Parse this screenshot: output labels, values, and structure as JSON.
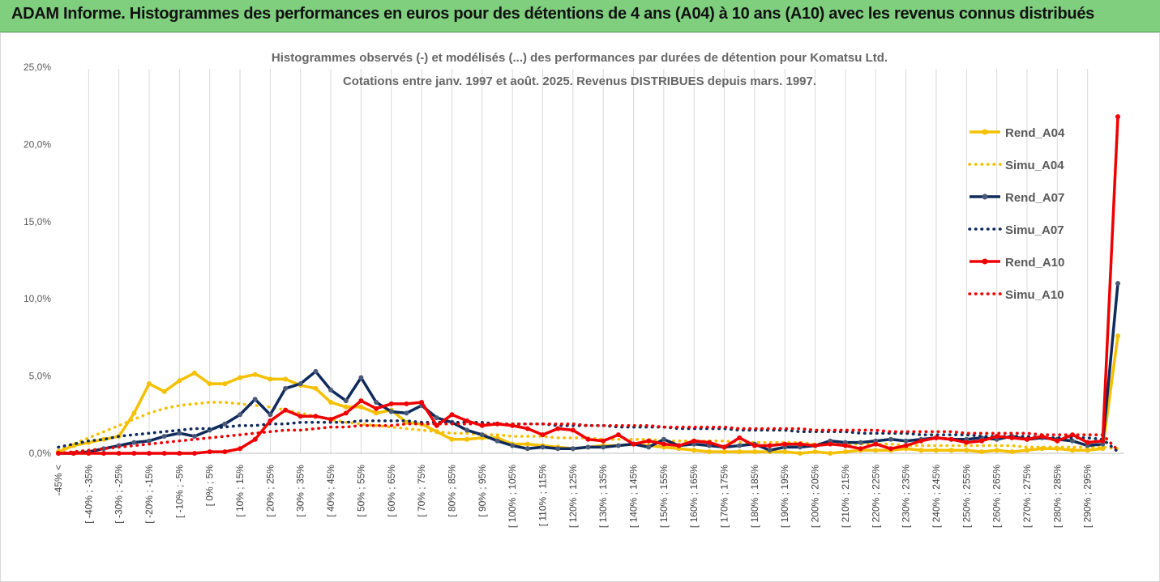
{
  "banner": {
    "title": "ADAM Informe. Histogrammes des performances en euros pour des détentions de 4 ans (A04) à 10 ans (A10) avec les revenus connus distribués"
  },
  "colors": {
    "banner": "#7fcf7f",
    "A04": "#f5c000",
    "A07": "#0f2a5c",
    "A10": "#f00000"
  },
  "chart_data": {
    "type": "line",
    "title": "Histogrammes observés (-) et modélisés (...) des performances par durées de détention pour Komatsu Ltd.",
    "subtitle": "Cotations entre janv. 1997 et août. 2025. Revenus DISTRIBUES depuis mars. 1997.",
    "xlabel": "",
    "ylabel": "",
    "ylim": [
      0,
      25
    ],
    "yticks": [
      "0,0%",
      "5,0%",
      "10,0%",
      "15,0%",
      "20,0%",
      "25,0%"
    ],
    "grid": "vertical",
    "legend": "right",
    "xtick_labels": [
      "-45% <",
      "[ -40% ; -35%",
      "[ -30% ; -25%",
      "[ -20% ; -15%",
      "[ -10% ; -5%",
      "[ 0% ; 5%",
      "[ 10% ; 15%",
      "[ 20% ; 25%",
      "[ 30% ; 35%",
      "[ 40% ; 45%",
      "[ 50% ; 55%",
      "[ 60% ; 65%",
      "[ 70% ; 75%",
      "[ 80% ; 85%",
      "[ 90% ; 95%",
      "[ 100% ; 105%",
      "[ 110% ; 115%",
      "[ 120% ; 125%",
      "[ 130% ; 135%",
      "[ 140% ; 145%",
      "[ 150% ; 155%",
      "[ 160% ; 165%",
      "[ 170% ; 175%",
      "[ 180% ; 185%",
      "[ 190% ; 195%",
      "[ 200% ; 205%",
      "[ 210% ; 215%",
      "[ 220% ; 225%",
      "[ 230% ; 235%",
      "[ 240% ; 245%",
      "[ 250% ; 255%",
      "[ 260% ; 265%",
      "[ 270% ; 275%",
      "[ 280% ; 285%",
      "[ 290% ; 295%"
    ],
    "series": [
      {
        "name": "Rend_A04",
        "style": "solid",
        "color": "#f5c000",
        "values": [
          0.1,
          0.5,
          0.7,
          0.9,
          1.1,
          2.6,
          4.5,
          4.0,
          4.7,
          5.2,
          4.5,
          4.5,
          4.9,
          5.1,
          4.8,
          4.8,
          4.4,
          4.2,
          3.3,
          3.0,
          3.0,
          2.6,
          2.8,
          2.0,
          1.9,
          1.4,
          0.9,
          0.9,
          1.0,
          1.0,
          0.6,
          0.6,
          0.5,
          0.4,
          0.3,
          0.4,
          0.5,
          0.5,
          0.6,
          0.5,
          0.4,
          0.3,
          0.2,
          0.1,
          0.1,
          0.1,
          0.1,
          0.1,
          0.1,
          0.0,
          0.1,
          0.0,
          0.1,
          0.2,
          0.2,
          0.2,
          0.3,
          0.2,
          0.2,
          0.2,
          0.2,
          0.1,
          0.2,
          0.1,
          0.2,
          0.3,
          0.3,
          0.2,
          0.2,
          0.3,
          7.6
        ]
      },
      {
        "name": "Simu_A04",
        "style": "dotted",
        "color": "#f5c000",
        "values": [
          0.2,
          0.6,
          1.0,
          1.4,
          1.8,
          2.2,
          2.6,
          2.9,
          3.1,
          3.2,
          3.3,
          3.3,
          3.2,
          3.1,
          3.0,
          2.8,
          2.6,
          2.4,
          2.2,
          2.0,
          1.9,
          1.8,
          1.7,
          1.6,
          1.5,
          1.4,
          1.3,
          1.3,
          1.2,
          1.2,
          1.1,
          1.1,
          1.1,
          1.0,
          1.0,
          1.0,
          0.9,
          0.9,
          0.9,
          0.9,
          0.8,
          0.8,
          0.8,
          0.8,
          0.8,
          0.7,
          0.7,
          0.7,
          0.7,
          0.7,
          0.6,
          0.6,
          0.6,
          0.6,
          0.6,
          0.6,
          0.5,
          0.5,
          0.5,
          0.5,
          0.5,
          0.5,
          0.5,
          0.5,
          0.4,
          0.4,
          0.4,
          0.4,
          0.4,
          0.4,
          0.3
        ]
      },
      {
        "name": "Rend_A07",
        "style": "solid",
        "color": "#0f2a5c",
        "values": [
          0.0,
          0.0,
          0.1,
          0.3,
          0.5,
          0.7,
          0.8,
          1.1,
          1.3,
          1.1,
          1.5,
          1.9,
          2.5,
          3.5,
          2.5,
          4.2,
          4.5,
          5.3,
          4.1,
          3.4,
          4.9,
          3.3,
          2.7,
          2.6,
          3.1,
          2.3,
          2.0,
          1.5,
          1.2,
          0.8,
          0.5,
          0.3,
          0.4,
          0.3,
          0.3,
          0.4,
          0.4,
          0.5,
          0.6,
          0.4,
          0.9,
          0.5,
          0.6,
          0.5,
          0.4,
          0.5,
          0.6,
          0.2,
          0.4,
          0.4,
          0.5,
          0.8,
          0.7,
          0.7,
          0.8,
          0.9,
          0.8,
          0.9,
          1.0,
          0.9,
          0.9,
          1.0,
          0.9,
          1.1,
          0.9,
          1.0,
          0.9,
          0.8,
          0.5,
          0.6,
          11.0
        ]
      },
      {
        "name": "Simu_A07",
        "style": "dotted",
        "color": "#0f2a5c",
        "values": [
          0.4,
          0.6,
          0.8,
          0.9,
          1.1,
          1.2,
          1.3,
          1.4,
          1.5,
          1.6,
          1.6,
          1.7,
          1.8,
          1.8,
          1.9,
          1.9,
          2.0,
          2.0,
          2.0,
          2.0,
          2.1,
          2.1,
          2.1,
          2.1,
          2.0,
          2.0,
          2.0,
          2.0,
          2.0,
          1.9,
          1.9,
          1.9,
          1.9,
          1.8,
          1.8,
          1.8,
          1.8,
          1.7,
          1.7,
          1.7,
          1.7,
          1.6,
          1.6,
          1.6,
          1.6,
          1.5,
          1.5,
          1.5,
          1.5,
          1.4,
          1.4,
          1.4,
          1.4,
          1.3,
          1.3,
          1.3,
          1.3,
          1.2,
          1.2,
          1.2,
          1.2,
          1.1,
          1.1,
          1.1,
          1.1,
          1.0,
          1.0,
          1.0,
          1.0,
          0.9,
          0.1
        ]
      },
      {
        "name": "Rend_A10",
        "style": "solid",
        "color": "#f00000",
        "values": [
          0.0,
          0.0,
          0.0,
          0.0,
          0.0,
          0.0,
          0.0,
          0.0,
          0.0,
          0.0,
          0.1,
          0.1,
          0.3,
          0.9,
          2.1,
          2.8,
          2.4,
          2.4,
          2.2,
          2.6,
          3.4,
          2.9,
          3.2,
          3.2,
          3.3,
          1.8,
          2.5,
          2.1,
          1.8,
          1.9,
          1.8,
          1.6,
          1.2,
          1.6,
          1.5,
          0.9,
          0.8,
          1.2,
          0.6,
          0.8,
          0.6,
          0.5,
          0.8,
          0.7,
          0.4,
          1.0,
          0.5,
          0.5,
          0.6,
          0.6,
          0.5,
          0.6,
          0.5,
          0.3,
          0.6,
          0.3,
          0.5,
          0.8,
          1.0,
          0.9,
          0.7,
          0.8,
          1.1,
          1.0,
          0.9,
          1.1,
          0.8,
          1.2,
          0.7,
          0.8,
          21.8
        ]
      },
      {
        "name": "Simu_A10",
        "style": "dotted",
        "color": "#f00000",
        "values": [
          0.0,
          0.1,
          0.2,
          0.3,
          0.4,
          0.5,
          0.6,
          0.7,
          0.8,
          0.9,
          1.0,
          1.1,
          1.2,
          1.3,
          1.4,
          1.5,
          1.5,
          1.6,
          1.7,
          1.7,
          1.8,
          1.8,
          1.8,
          1.9,
          1.9,
          1.9,
          1.9,
          1.9,
          1.9,
          1.9,
          1.9,
          1.9,
          1.9,
          1.9,
          1.9,
          1.8,
          1.8,
          1.8,
          1.8,
          1.8,
          1.7,
          1.7,
          1.7,
          1.7,
          1.7,
          1.6,
          1.6,
          1.6,
          1.6,
          1.6,
          1.5,
          1.5,
          1.5,
          1.5,
          1.5,
          1.4,
          1.4,
          1.4,
          1.4,
          1.4,
          1.3,
          1.3,
          1.3,
          1.3,
          1.3,
          1.2,
          1.2,
          1.2,
          1.2,
          1.2,
          0.2
        ]
      }
    ]
  }
}
